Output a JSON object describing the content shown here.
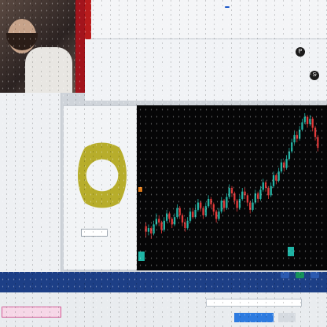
{
  "header": {
    "headline": "",
    "tag": "",
    "sub": ""
  },
  "info": {
    "rows": [],
    "play_icon_label": "P",
    "settings_icon_label": "S"
  },
  "left_panel": {
    "title": "",
    "items": [],
    "tabs": []
  },
  "donut_card": {
    "title": "",
    "center_label": "",
    "price": ""
  },
  "chart_data": {
    "type": "candlestick",
    "title": "",
    "candles": [
      [
        0.56,
        0.53,
        0.58,
        0.5
      ],
      [
        0.53,
        0.55,
        0.57,
        0.51
      ],
      [
        0.55,
        0.52,
        0.56,
        0.49
      ],
      [
        0.52,
        0.57,
        0.59,
        0.51
      ],
      [
        0.57,
        0.6,
        0.63,
        0.56
      ],
      [
        0.6,
        0.58,
        0.62,
        0.56
      ],
      [
        0.58,
        0.54,
        0.59,
        0.52
      ],
      [
        0.54,
        0.59,
        0.61,
        0.53
      ],
      [
        0.59,
        0.63,
        0.65,
        0.58
      ],
      [
        0.63,
        0.6,
        0.64,
        0.58
      ],
      [
        0.6,
        0.57,
        0.61,
        0.55
      ],
      [
        0.57,
        0.61,
        0.63,
        0.56
      ],
      [
        0.61,
        0.66,
        0.68,
        0.6
      ],
      [
        0.66,
        0.62,
        0.67,
        0.6
      ],
      [
        0.62,
        0.58,
        0.63,
        0.56
      ],
      [
        0.58,
        0.55,
        0.6,
        0.53
      ],
      [
        0.55,
        0.59,
        0.61,
        0.54
      ],
      [
        0.59,
        0.64,
        0.66,
        0.58
      ],
      [
        0.64,
        0.61,
        0.66,
        0.6
      ],
      [
        0.61,
        0.65,
        0.68,
        0.6
      ],
      [
        0.65,
        0.69,
        0.71,
        0.64
      ],
      [
        0.69,
        0.66,
        0.7,
        0.64
      ],
      [
        0.66,
        0.62,
        0.67,
        0.6
      ],
      [
        0.62,
        0.67,
        0.69,
        0.61
      ],
      [
        0.67,
        0.71,
        0.73,
        0.66
      ],
      [
        0.71,
        0.68,
        0.72,
        0.66
      ],
      [
        0.68,
        0.64,
        0.69,
        0.62
      ],
      [
        0.64,
        0.6,
        0.65,
        0.58
      ],
      [
        0.6,
        0.64,
        0.66,
        0.59
      ],
      [
        0.64,
        0.7,
        0.72,
        0.63
      ],
      [
        0.7,
        0.66,
        0.71,
        0.64
      ],
      [
        0.66,
        0.72,
        0.74,
        0.65
      ],
      [
        0.72,
        0.77,
        0.79,
        0.71
      ],
      [
        0.77,
        0.74,
        0.78,
        0.72
      ],
      [
        0.74,
        0.7,
        0.75,
        0.68
      ],
      [
        0.7,
        0.66,
        0.71,
        0.64
      ],
      [
        0.66,
        0.71,
        0.73,
        0.65
      ],
      [
        0.71,
        0.75,
        0.77,
        0.7
      ],
      [
        0.75,
        0.73,
        0.77,
        0.71
      ],
      [
        0.73,
        0.69,
        0.74,
        0.67
      ],
      [
        0.69,
        0.65,
        0.7,
        0.63
      ],
      [
        0.65,
        0.69,
        0.71,
        0.64
      ],
      [
        0.69,
        0.74,
        0.76,
        0.68
      ],
      [
        0.74,
        0.71,
        0.75,
        0.69
      ],
      [
        0.71,
        0.76,
        0.78,
        0.7
      ],
      [
        0.76,
        0.8,
        0.82,
        0.75
      ],
      [
        0.8,
        0.77,
        0.81,
        0.75
      ],
      [
        0.77,
        0.73,
        0.78,
        0.71
      ],
      [
        0.73,
        0.78,
        0.8,
        0.72
      ],
      [
        0.78,
        0.84,
        0.86,
        0.77
      ],
      [
        0.84,
        0.81,
        0.85,
        0.79
      ],
      [
        0.81,
        0.86,
        0.88,
        0.8
      ],
      [
        0.86,
        0.91,
        0.93,
        0.85
      ],
      [
        0.91,
        0.88,
        0.92,
        0.86
      ],
      [
        0.88,
        0.93,
        0.95,
        0.87
      ],
      [
        0.93,
        0.97,
        0.99,
        0.92
      ],
      [
        0.97,
        1.02,
        1.04,
        0.96
      ],
      [
        1.02,
        1.06,
        1.08,
        1.01
      ],
      [
        1.06,
        1.04,
        1.08,
        1.02
      ],
      [
        1.04,
        1.09,
        1.11,
        1.03
      ],
      [
        1.09,
        1.13,
        1.15,
        1.08
      ],
      [
        1.13,
        1.16,
        1.18,
        1.12
      ],
      [
        1.16,
        1.12,
        1.17,
        1.1
      ],
      [
        1.12,
        1.15,
        1.17,
        1.11
      ],
      [
        1.15,
        1.1,
        1.16,
        1.08
      ],
      [
        1.1,
        1.05,
        1.11,
        1.03
      ],
      [
        1.05,
        0.99,
        1.06,
        0.97
      ]
    ],
    "colors": {
      "up": "#24b3a4",
      "down": "#e23a3a",
      "background": "#060607"
    }
  },
  "bottom": {
    "notice": "",
    "address": "",
    "primary": "",
    "secondary": ""
  },
  "colors": {
    "accent_blue": "#1d3f86",
    "accent_red": "#b91c1c",
    "donut": "#b7ad2b"
  }
}
